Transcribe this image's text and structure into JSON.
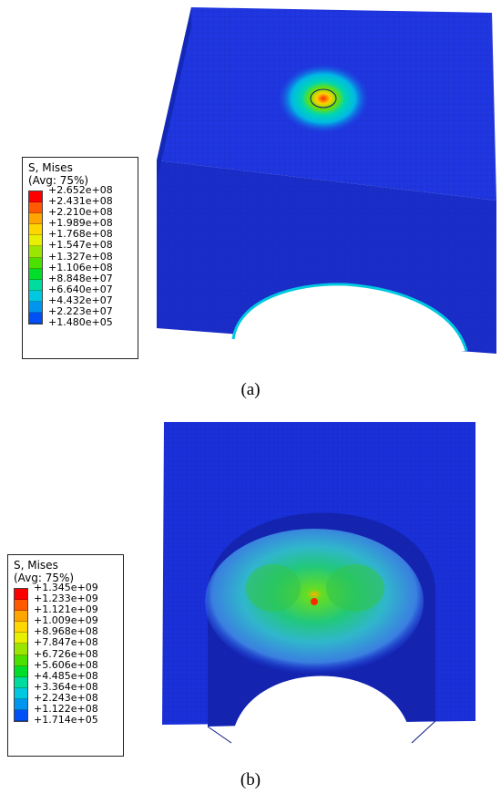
{
  "panels": [
    {
      "caption": "(a)",
      "legend": {
        "title": "S, Mises",
        "subtitle": "(Avg: 75%)",
        "values": [
          "+2.652e+08",
          "+2.431e+08",
          "+2.210e+08",
          "+1.989e+08",
          "+1.768e+08",
          "+1.547e+08",
          "+1.327e+08",
          "+1.106e+08",
          "+8.848e+07",
          "+6.640e+07",
          "+4.432e+07",
          "+2.223e+07",
          "+1.480e+05"
        ]
      }
    },
    {
      "caption": "(b)",
      "legend": {
        "title": "S, Mises",
        "subtitle": "(Avg: 75%)",
        "values": [
          "+1.345e+09",
          "+1.233e+09",
          "+1.121e+09",
          "+1.009e+09",
          "+8.968e+08",
          "+7.847e+08",
          "+6.726e+08",
          "+5.606e+08",
          "+4.485e+08",
          "+3.364e+08",
          "+2.243e+08",
          "+1.122e+08",
          "+1.714e+05"
        ]
      }
    }
  ],
  "colors": {
    "scale": [
      "#ff0000",
      "#ff5a00",
      "#ffa500",
      "#ffd700",
      "#e6f000",
      "#9ae600",
      "#4be000",
      "#00de2a",
      "#00dca0",
      "#00c8e0",
      "#0096f0",
      "#0050f5",
      "#0010f0"
    ],
    "mesh_blue": "#1a2fd6",
    "mesh_dark": "#1222a8"
  }
}
